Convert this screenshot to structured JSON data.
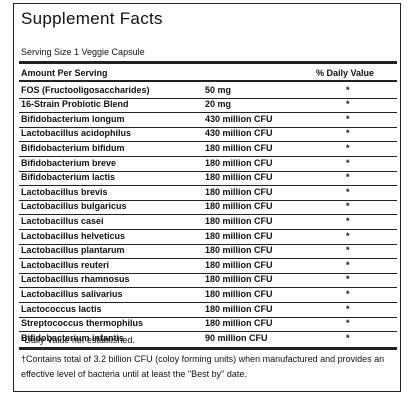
{
  "title": "Supplement Facts",
  "serving_size": "Serving Size 1 Veggie Capsule",
  "table": {
    "header": [
      "Amount Per Serving",
      "% Daily Value"
    ],
    "rows": [
      [
        "FOS (Fructooligosaccharides)",
        "50 mg",
        "*"
      ],
      [
        "16-Strain Probiotic Blend",
        "20 mg",
        "*"
      ],
      [
        "Bifidobacterium longum",
        "430 million CFU",
        "*"
      ],
      [
        "Lactobacillus acidophilus",
        "430 million CFU",
        "*"
      ],
      [
        "Bifidobacterium bifidum",
        "180 million CFU",
        "*"
      ],
      [
        "Bifidobacterium breve",
        "180 million CFU",
        "*"
      ],
      [
        "Bifidobacterium lactis",
        "180 million CFU",
        "*"
      ],
      [
        "Lactobacillus brevis",
        "180 million CFU",
        "*"
      ],
      [
        "Lactobacillus bulgaricus",
        "180 million CFU",
        "*"
      ],
      [
        "Lactobacillus casei",
        "180 million CFU",
        "*"
      ],
      [
        "Lactobacillus helveticus",
        "180 million CFU",
        "*"
      ],
      [
        "Lactobacillus plantarum",
        "180 million CFU",
        "*"
      ],
      [
        "Lactobacillus reuteri",
        "180 million CFU",
        "*"
      ],
      [
        "Lactobacillus rhamnosus",
        "180 million CFU",
        "*"
      ],
      [
        "Lactobacillus salivarius",
        "180 million CFU",
        "*"
      ],
      [
        "Lactococcus lactis",
        "180 million CFU",
        "*"
      ],
      [
        "Streptococcus thermophilus",
        "180 million CFU",
        "*"
      ],
      [
        "Bifidobacterium infantis",
        "90 million CFU",
        "*"
      ]
    ]
  },
  "footnotes": [
    "*Daily Value not established.",
    "†Contains total of 3.2 billion CFU (coloy forming units) when manufactured and provides an effective level of bacteria until at least the \"Best by\" date."
  ]
}
